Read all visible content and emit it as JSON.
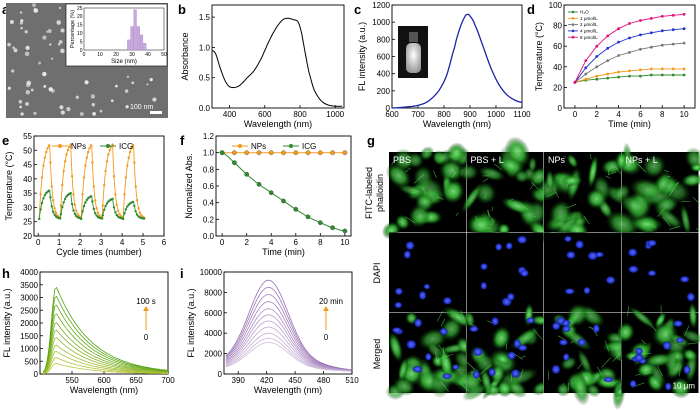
{
  "panel_letters": {
    "a": "a",
    "b": "b",
    "c": "c",
    "d": "d",
    "e": "e",
    "f": "f",
    "g": "g",
    "h": "h",
    "i": "i"
  },
  "colors": {
    "orange": "#F39A1F",
    "green": "#2E8B2E",
    "navy": "#1C23A8",
    "pink": "#E0117A",
    "blue_d": "#2233CC",
    "lime": "#7CB518",
    "purple": "#B08ACC",
    "cyto": "#3DBA3D",
    "nucleus": "#2A3CD8"
  },
  "panel_a": {
    "scale_bar": "100 nm",
    "inset_title": "",
    "inset_xlabel": "Size (nm)",
    "inset_ylabel": "Percentage (%)",
    "inset_xticks": [
      "0",
      "10",
      "20",
      "30",
      "40",
      "50"
    ],
    "inset_yticks": [
      "0",
      "5",
      "10",
      "15",
      "20",
      "25"
    ],
    "hist_x": [
      28,
      30,
      32,
      34,
      36,
      38
    ],
    "hist_y": [
      6,
      14,
      24,
      14,
      9,
      4
    ]
  },
  "chart_data": [
    {
      "panel": "b",
      "type": "line",
      "title": "",
      "xlabel": "Wavelength (nm)",
      "ylabel": "Absorbance",
      "xlim": [
        300,
        1050
      ],
      "ylim": [
        0,
        1.7
      ],
      "xticks": [
        "400",
        "600",
        "800",
        "1000"
      ],
      "yticks": [
        "0.0",
        "0.5",
        "1.0",
        "1.5"
      ],
      "x": [
        300,
        320,
        340,
        360,
        380,
        400,
        430,
        460,
        500,
        540,
        580,
        620,
        660,
        700,
        730,
        760,
        790,
        810,
        830,
        850,
        880,
        920,
        960,
        1000,
        1040
      ],
      "y": [
        0.95,
        0.9,
        0.72,
        0.55,
        0.42,
        0.35,
        0.34,
        0.38,
        0.5,
        0.62,
        0.82,
        1.08,
        1.3,
        1.45,
        1.48,
        1.46,
        1.42,
        1.22,
        0.9,
        0.6,
        0.3,
        0.12,
        0.05,
        0.03,
        0.03
      ]
    },
    {
      "panel": "c",
      "type": "line",
      "title": "",
      "xlabel": "Wavelength (nm)",
      "ylabel": "FL intensity (a.u.)",
      "xlim": [
        600,
        1100
      ],
      "ylim": [
        0,
        1200
      ],
      "xticks": [
        "600",
        "700",
        "800",
        "900",
        "1000",
        "1100"
      ],
      "yticks": [
        "0",
        "200",
        "400",
        "600",
        "800",
        "1000",
        "1200"
      ],
      "x": [
        600,
        650,
        700,
        740,
        780,
        810,
        840,
        860,
        880,
        890,
        900,
        920,
        950,
        980,
        1010,
        1040,
        1070,
        1100
      ],
      "y": [
        0,
        10,
        30,
        80,
        200,
        380,
        700,
        920,
        1060,
        1090,
        1070,
        960,
        720,
        470,
        280,
        160,
        95,
        65
      ]
    },
    {
      "panel": "d",
      "type": "line",
      "title": "",
      "xlabel": "Time (min)",
      "ylabel": "Temperature (°C)",
      "xlim": [
        -1,
        11
      ],
      "ylim": [
        0,
        100
      ],
      "xticks": [
        "0",
        "2",
        "4",
        "6",
        "8",
        "10"
      ],
      "yticks": [
        "0",
        "20",
        "40",
        "60",
        "80",
        "100"
      ],
      "x": [
        0,
        1,
        2,
        3,
        4,
        5,
        6,
        7,
        8,
        9,
        10
      ],
      "series": [
        {
          "name": "H₂O",
          "values": [
            25,
            27,
            28,
            29,
            30,
            31,
            31,
            32,
            32,
            32,
            32
          ]
        },
        {
          "name": "1 μmol/L",
          "values": [
            25,
            28,
            31,
            33,
            35,
            36,
            37,
            38,
            38,
            38,
            38
          ]
        },
        {
          "name": "2 μmol/L",
          "values": [
            25,
            33,
            40,
            46,
            51,
            54,
            57,
            59,
            61,
            62,
            63
          ]
        },
        {
          "name": "4 μmol/L",
          "values": [
            25,
            39,
            50,
            58,
            64,
            68,
            71,
            73,
            75,
            76,
            77
          ]
        },
        {
          "name": "8 μmol/L",
          "values": [
            25,
            46,
            60,
            70,
            77,
            82,
            85,
            87,
            89,
            90,
            91
          ]
        }
      ]
    },
    {
      "panel": "e",
      "type": "line",
      "title": "",
      "xlabel": "Cycle times (number)",
      "ylabel": "Temperature (°C)",
      "xlim": [
        -0.2,
        6
      ],
      "ylim": [
        20,
        55
      ],
      "xticks": [
        "0",
        "1",
        "2",
        "3",
        "4",
        "5",
        "6"
      ],
      "yticks": [
        "20",
        "25",
        "30",
        "35",
        "40",
        "45",
        "50",
        "55"
      ],
      "series": [
        {
          "name": "NPs",
          "peak": 52,
          "base": 26
        },
        {
          "name": "ICG",
          "peaks": [
            36,
            35,
            34,
            33,
            32
          ],
          "base": 26
        }
      ]
    },
    {
      "panel": "f",
      "type": "line",
      "title": "",
      "xlabel": "Time (min)",
      "ylabel": "Normalized Abs.",
      "xlim": [
        -0.5,
        10.5
      ],
      "ylim": [
        0,
        1.2
      ],
      "xticks": [
        "0",
        "2",
        "4",
        "6",
        "8",
        "10"
      ],
      "yticks": [
        "0.0",
        "0.2",
        "0.4",
        "0.6",
        "0.8",
        "1.0",
        "1.2"
      ],
      "x": [
        0,
        1,
        2,
        3,
        4,
        5,
        6,
        7,
        8,
        9,
        10
      ],
      "series": [
        {
          "name": "NPs",
          "values": [
            1,
            1,
            1,
            1,
            1,
            1,
            1,
            1,
            1,
            1,
            1
          ]
        },
        {
          "name": "ICG",
          "values": [
            1.0,
            0.88,
            0.74,
            0.62,
            0.52,
            0.42,
            0.32,
            0.23,
            0.16,
            0.1,
            0.06
          ]
        }
      ]
    },
    {
      "panel": "h",
      "type": "line",
      "title": "",
      "xlabel": "Wavelength (nm)",
      "ylabel": "FL intensity (a.u.)",
      "xlim": [
        500,
        700
      ],
      "ylim": [
        0,
        4000
      ],
      "xticks": [
        "550",
        "600",
        "650",
        "700"
      ],
      "yticks": [
        "0",
        "500",
        "1000",
        "1500",
        "2000",
        "2500",
        "3000",
        "3500",
        "4000"
      ],
      "peak_x": 525,
      "peaks": [
        3450,
        3100,
        2750,
        2400,
        2050,
        1750,
        1450,
        1150,
        900,
        650,
        420
      ],
      "annotation_top": "100 s",
      "annotation_bottom": "0"
    },
    {
      "panel": "i",
      "type": "line",
      "title": "",
      "xlabel": "Wavelength (nm)",
      "ylabel": "FL intensity (a.u.)",
      "xlim": [
        375,
        510
      ],
      "ylim": [
        0,
        10000
      ],
      "xticks": [
        "390",
        "420",
        "450",
        "480",
        "510"
      ],
      "yticks": [
        "0",
        "2000",
        "4000",
        "6000",
        "8000",
        "10000"
      ],
      "peak_x": 422,
      "peaks": [
        9000,
        8300,
        7600,
        6900,
        6200,
        5600,
        5000,
        4400,
        3800,
        3300,
        2900
      ],
      "annotation_top": "20 min",
      "annotation_bottom": "0"
    }
  ],
  "panel_g": {
    "col_labels": [
      "PBS",
      "PBS + L",
      "NPs",
      "NPs + L"
    ],
    "row_labels": [
      "FITC-labeled phalloidin",
      "DAPI",
      "Merged"
    ],
    "row1_line1": "FITC-labeled",
    "row1_line2": "phalloidin",
    "scale_bar": "10 μm"
  }
}
